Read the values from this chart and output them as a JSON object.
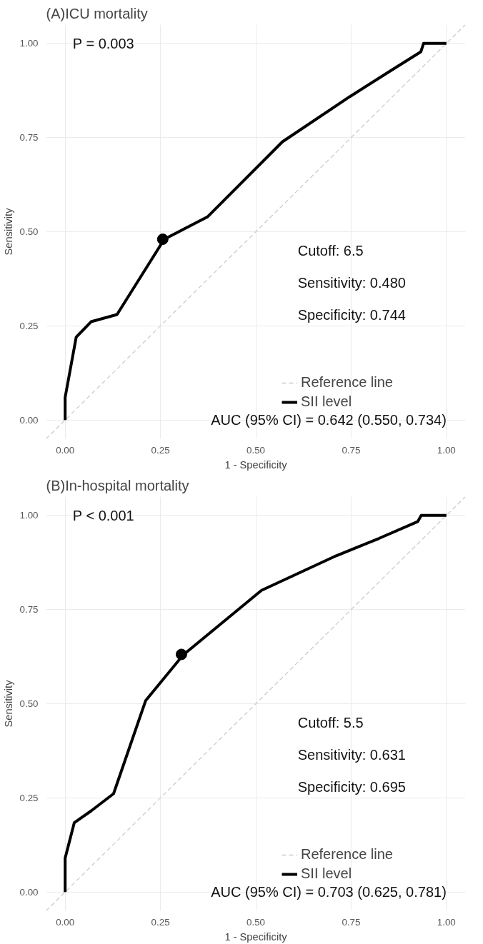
{
  "chart_data": [
    {
      "type": "line",
      "title": "(A)ICU mortality",
      "xlabel": "1 - Specificity",
      "ylabel": "Sensitivity",
      "xlim": [
        -0.05,
        1.05
      ],
      "ylim": [
        -0.05,
        1.05
      ],
      "xticks": [
        {
          "value": 0,
          "label": "0.00"
        },
        {
          "value": 0.25,
          "label": "0.25"
        },
        {
          "value": 0.5,
          "label": "0.50"
        },
        {
          "value": 0.75,
          "label": "0.75"
        },
        {
          "value": 1,
          "label": "1.00"
        }
      ],
      "yticks": [
        {
          "value": 0,
          "label": "0.00"
        },
        {
          "value": 0.25,
          "label": "0.25"
        },
        {
          "value": 0.5,
          "label": "0.50"
        },
        {
          "value": 0.75,
          "label": "0.75"
        },
        {
          "value": 1,
          "label": "1.00"
        }
      ],
      "grid": true,
      "legend": "bottom right",
      "series": [
        {
          "name": "SII level",
          "color": "#000000",
          "x": [
            0,
            0,
            0.029,
            0.068,
            0.136,
            0.26,
            0.374,
            0.57,
            0.747,
            0.842,
            0.933,
            0.94,
            1
          ],
          "values": [
            0,
            0.06,
            0.22,
            0.261,
            0.28,
            0.48,
            0.54,
            0.739,
            0.859,
            0.92,
            0.978,
            1,
            1
          ]
        },
        {
          "name": "Reference line",
          "color": "#cccccc",
          "line_style": "dashed",
          "x": [
            -0.05,
            1.05
          ],
          "values": [
            -0.05,
            1.05
          ]
        },
        {
          "type": "scatter",
          "marker": "circle",
          "color": "#000000",
          "x": [
            0.256
          ],
          "values": [
            0.48
          ]
        }
      ],
      "annotations": [
        "P = 0.003",
        "Cutoff: 6.5",
        "Sensitivity: 0.480",
        "Specificity: 0.744",
        "AUC (95% CI) = 0.642 (0.550, 0.734)"
      ]
    },
    {
      "type": "line",
      "title": "(B)In-hospital mortality",
      "xlabel": "1 - Specificity",
      "ylabel": "Sensitivity",
      "xlim": [
        -0.05,
        1.05
      ],
      "ylim": [
        -0.05,
        1.05
      ],
      "xticks": [
        {
          "value": 0,
          "label": "0.00"
        },
        {
          "value": 0.25,
          "label": "0.25"
        },
        {
          "value": 0.5,
          "label": "0.50"
        },
        {
          "value": 0.75,
          "label": "0.75"
        },
        {
          "value": 1,
          "label": "1.00"
        }
      ],
      "yticks": [
        {
          "value": 0,
          "label": "0.00"
        },
        {
          "value": 0.25,
          "label": "0.25"
        },
        {
          "value": 0.5,
          "label": "0.50"
        },
        {
          "value": 0.75,
          "label": "0.75"
        },
        {
          "value": 1,
          "label": "1.00"
        }
      ],
      "grid": true,
      "legend": "bottom right",
      "series": [
        {
          "name": "SII level",
          "color": "#000000",
          "x": [
            0,
            0,
            0.024,
            0.069,
            0.127,
            0.211,
            0.31,
            0.515,
            0.711,
            0.823,
            0.925,
            0.934,
            1
          ],
          "values": [
            0,
            0.09,
            0.184,
            0.216,
            0.261,
            0.508,
            0.63,
            0.801,
            0.893,
            0.939,
            0.984,
            1,
            1
          ]
        },
        {
          "name": "Reference line",
          "color": "#cccccc",
          "line_style": "dashed",
          "x": [
            -0.05,
            1.05
          ],
          "values": [
            -0.05,
            1.05
          ]
        },
        {
          "type": "scatter",
          "marker": "circle",
          "color": "#000000",
          "x": [
            0.305
          ],
          "values": [
            0.631
          ]
        }
      ],
      "annotations": [
        "P < 0.001",
        "Cutoff: 5.5",
        "Sensitivity: 0.631",
        "Specificity: 0.695",
        "AUC (95% CI) = 0.703 (0.625, 0.781)"
      ]
    }
  ]
}
